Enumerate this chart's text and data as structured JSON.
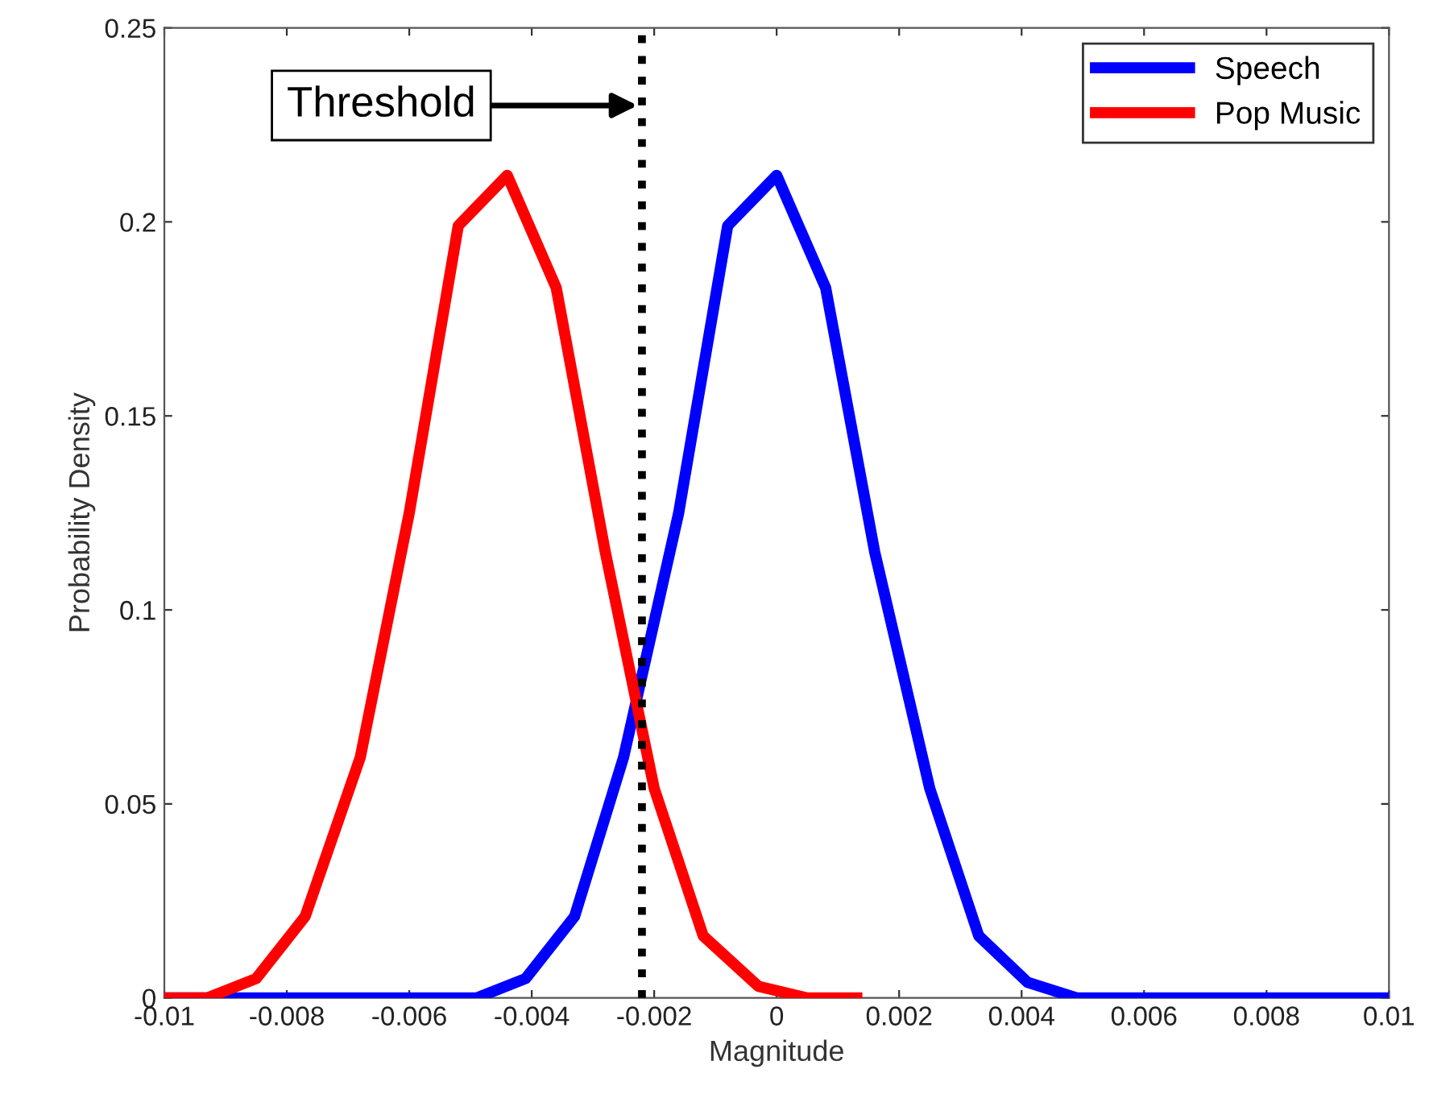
{
  "chart_data": {
    "type": "line",
    "xlabel": "Magnitude",
    "ylabel": "Probability Density",
    "xlim": [
      -0.01,
      0.01
    ],
    "xticks": [
      -0.01,
      -0.008,
      -0.006,
      -0.004,
      -0.002,
      0,
      0.002,
      0.004,
      0.006,
      0.008,
      0.01
    ],
    "ylim": [
      0,
      0.25
    ],
    "yticks": [
      0,
      0.05,
      0.1,
      0.15,
      0.2,
      0.25
    ],
    "grid": false,
    "legend": "top right",
    "line_style": "solid",
    "marker": "none",
    "series": [
      {
        "name": "Speech",
        "color": "#0000ff",
        "x": [
          -0.01,
          -0.0049,
          -0.0041,
          -0.0033,
          -0.0025,
          -0.0016,
          -0.0008,
          0,
          0.0008,
          0.0016,
          0.0025,
          0.0033,
          0.0041,
          0.0049,
          0.01
        ],
        "values": [
          0,
          0,
          0.005,
          0.021,
          0.062,
          0.125,
          0.199,
          0.212,
          0.183,
          0.115,
          0.054,
          0.016,
          0.004,
          0,
          0
        ]
      },
      {
        "name": "Pop Music",
        "color": "#ff0000",
        "x": [
          -0.01,
          -0.0093,
          -0.0085,
          -0.0077,
          -0.0068,
          -0.006,
          -0.0052,
          -0.0044,
          -0.0036,
          -0.0028,
          -0.002,
          -0.0012,
          -0.0003,
          0.0005,
          0.0014
        ],
        "values": [
          0,
          0,
          0.005,
          0.021,
          0.062,
          0.125,
          0.199,
          0.212,
          0.183,
          0.115,
          0.054,
          0.016,
          0.003,
          0,
          0
        ]
      }
    ],
    "ref_lines": [
      {
        "axis": "x",
        "value": -0.0022,
        "label": null,
        "color": "#000000",
        "line_style": "dotted"
      }
    ],
    "annotations": [
      "Threshold"
    ]
  }
}
